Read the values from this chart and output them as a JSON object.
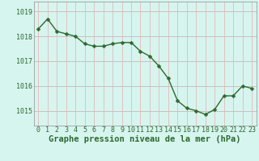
{
  "hours": [
    0,
    1,
    2,
    3,
    4,
    5,
    6,
    7,
    8,
    9,
    10,
    11,
    12,
    13,
    14,
    15,
    16,
    17,
    18,
    19,
    20,
    21,
    22,
    23
  ],
  "pressure": [
    1018.3,
    1018.7,
    1018.2,
    1018.1,
    1018.0,
    1017.7,
    1017.6,
    1017.6,
    1017.7,
    1017.75,
    1017.75,
    1017.4,
    1017.2,
    1016.8,
    1016.3,
    1015.4,
    1015.1,
    1015.0,
    1014.85,
    1015.05,
    1015.6,
    1015.6,
    1016.0,
    1015.9
  ],
  "line_color": "#2d6a2d",
  "marker_color": "#2d6a2d",
  "bg_color": "#d6f5ef",
  "grid_color_h": "#c8b8b8",
  "grid_color_v": "#e8b8b8",
  "ylabel_ticks": [
    1015,
    1016,
    1017,
    1018,
    1019
  ],
  "ylim": [
    1014.4,
    1019.4
  ],
  "xlim": [
    -0.5,
    23.5
  ],
  "xlabel": "Graphe pression niveau de la mer (hPa)",
  "xlabel_fontsize": 7.5,
  "tick_fontsize": 6,
  "marker_size": 2.5,
  "line_width": 1.0
}
